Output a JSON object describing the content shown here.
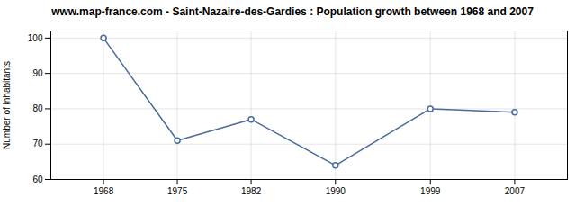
{
  "chart_data": {
    "type": "line",
    "title": "www.map-france.com - Saint-Nazaire-des-Gardies : Population growth between 1968 and 2007",
    "ylabel": "Number of inhabitants",
    "x": [
      1968,
      1975,
      1982,
      1990,
      1999,
      2007
    ],
    "values": [
      100,
      71,
      77,
      64,
      80,
      79
    ],
    "color": "#4a6a9c",
    "marker": "circle",
    "xlim": [
      1963,
      2012
    ],
    "xticks": [
      1968,
      1975,
      1982,
      1990,
      1999,
      2007
    ],
    "ylim": [
      60,
      102
    ],
    "yticks": [
      60,
      70,
      80,
      90,
      100
    ],
    "grid": true
  }
}
